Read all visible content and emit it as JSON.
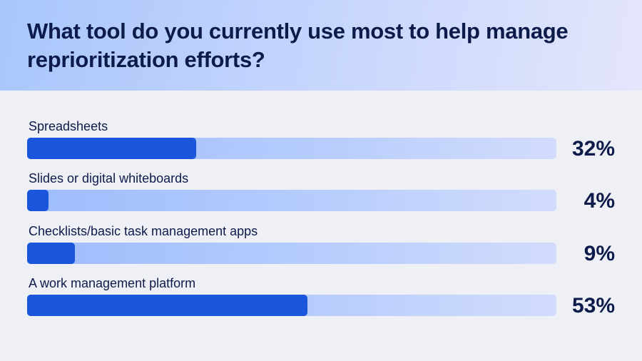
{
  "header": {
    "title": "What tool do you currently use most to help manage reprioritization efforts?"
  },
  "colors": {
    "bar_fill": "#1a56db",
    "track": "#b4cbfd",
    "text": "#0d1b4a",
    "background": "#eff0f5"
  },
  "rows": [
    {
      "label": "Spreadsheets",
      "value": 32,
      "pct": "32%"
    },
    {
      "label": "Slides or digital whiteboards",
      "value": 4,
      "pct": "4%"
    },
    {
      "label": "Checklists/basic task management apps",
      "value": 9,
      "pct": "9%"
    },
    {
      "label": "A work management platform",
      "value": 53,
      "pct": "53%"
    }
  ],
  "chart_data": {
    "type": "bar",
    "orientation": "horizontal",
    "title": "What tool do you currently use most to help manage reprioritization efforts?",
    "categories": [
      "Spreadsheets",
      "Slides or digital whiteboards",
      "Checklists/basic task management apps",
      "A work management platform"
    ],
    "values": [
      32,
      4,
      9,
      53
    ],
    "value_labels": [
      "32%",
      "4%",
      "9%",
      "53%"
    ],
    "xlabel": "",
    "ylabel": "",
    "xlim": [
      0,
      100
    ],
    "grid": false,
    "legend": null
  }
}
